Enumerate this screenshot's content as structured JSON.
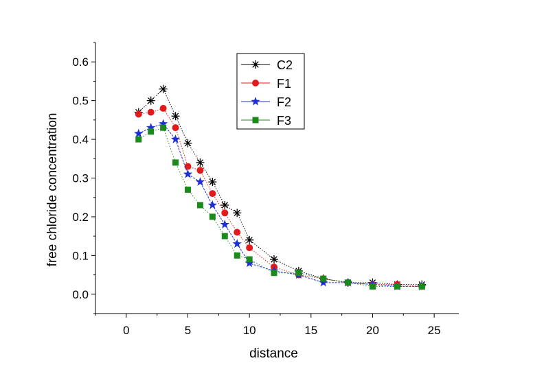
{
  "chart_data": {
    "type": "line",
    "title": "",
    "xlabel": "distance",
    "ylabel": "free chloride concentration",
    "xlim": [
      -2.5,
      27
    ],
    "ylim": [
      -0.05,
      0.65
    ],
    "xticks": [
      0,
      5,
      10,
      15,
      20,
      25
    ],
    "yticks": [
      0.0,
      0.1,
      0.2,
      0.3,
      0.4,
      0.5,
      0.6
    ],
    "xtick_labels": [
      "0",
      "5",
      "10",
      "15",
      "20",
      "25"
    ],
    "ytick_labels": [
      "0.0",
      "0.1",
      "0.2",
      "0.3",
      "0.4",
      "0.5",
      "0.6"
    ],
    "grid": false,
    "legend_position": "top-center",
    "series": [
      {
        "name": "C2",
        "color": "#000000",
        "marker": "asterisk",
        "x": [
          1,
          2,
          3,
          4,
          5,
          6,
          7,
          8,
          9,
          10,
          12,
          14,
          16,
          18,
          20,
          22,
          24
        ],
        "y": [
          0.47,
          0.5,
          0.53,
          0.46,
          0.39,
          0.34,
          0.29,
          0.23,
          0.21,
          0.14,
          0.09,
          0.06,
          0.04,
          0.03,
          0.03,
          0.025,
          0.025
        ]
      },
      {
        "name": "F1",
        "color": "#e31a1c",
        "marker": "circle",
        "x": [
          1,
          2,
          3,
          4,
          5,
          6,
          7,
          8,
          9,
          10,
          12,
          14,
          16,
          18,
          20,
          22,
          24
        ],
        "y": [
          0.465,
          0.47,
          0.48,
          0.43,
          0.33,
          0.32,
          0.26,
          0.21,
          0.16,
          0.12,
          0.07,
          0.05,
          0.04,
          0.03,
          0.025,
          0.025,
          0.02
        ]
      },
      {
        "name": "F2",
        "color": "#1f2fd6",
        "marker": "star",
        "x": [
          1,
          2,
          3,
          4,
          5,
          6,
          7,
          8,
          9,
          10,
          12,
          14,
          16,
          18,
          20,
          22,
          24
        ],
        "y": [
          0.415,
          0.43,
          0.44,
          0.4,
          0.31,
          0.29,
          0.23,
          0.18,
          0.13,
          0.08,
          0.06,
          0.05,
          0.03,
          0.03,
          0.025,
          0.02,
          0.02
        ]
      },
      {
        "name": "F3",
        "color": "#1a8a1a",
        "marker": "square",
        "x": [
          1,
          2,
          3,
          4,
          5,
          6,
          7,
          8,
          9,
          10,
          12,
          14,
          16,
          18,
          20,
          22,
          24
        ],
        "y": [
          0.4,
          0.42,
          0.43,
          0.34,
          0.27,
          0.23,
          0.2,
          0.15,
          0.1,
          0.09,
          0.055,
          0.055,
          0.04,
          0.03,
          0.02,
          0.02,
          0.02
        ]
      }
    ]
  }
}
